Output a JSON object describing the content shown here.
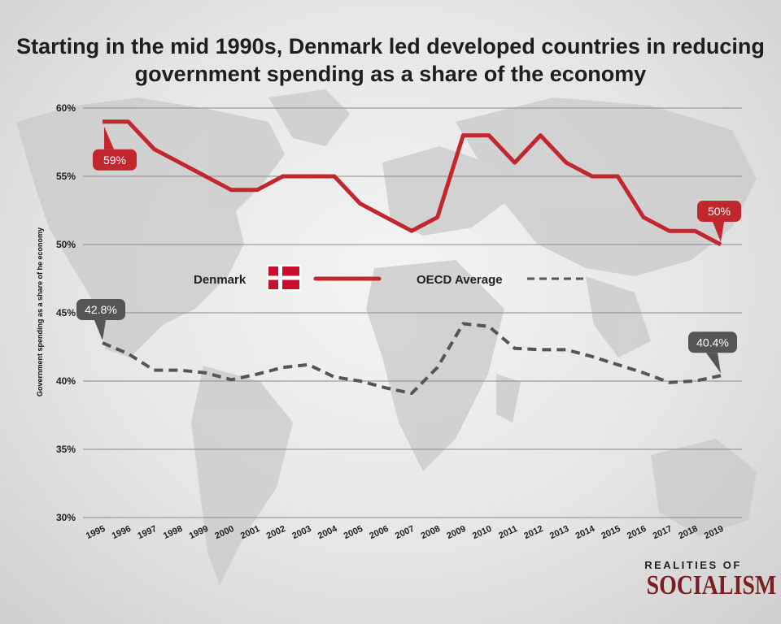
{
  "title": "Starting in the mid 1990s, Denmark led developed countries in reducing government spending as a share of the economy",
  "logo": {
    "top": "REALITIES OF",
    "main": "SOCIALISM"
  },
  "colors": {
    "denmark": "#c1272d",
    "oecd": "#555555",
    "grid": "#8a8a8a"
  },
  "chart_data": {
    "type": "line",
    "ylabel": "Government spending as a share of he economy",
    "xlabel": "",
    "ylim": [
      30,
      60
    ],
    "yticks": [
      30,
      35,
      40,
      45,
      50,
      55,
      60
    ],
    "ytick_labels": [
      "30%",
      "35%",
      "40%",
      "45%",
      "50%",
      "55%",
      "60%"
    ],
    "grid": true,
    "legend_placement": "center",
    "x": [
      "1995",
      "1996",
      "1997",
      "1998",
      "1999",
      "2000",
      "2001",
      "2002",
      "2003",
      "2004",
      "2005",
      "2006",
      "2007",
      "2008",
      "2009",
      "2010",
      "2011",
      "2012",
      "2013",
      "2014",
      "2015",
      "2016",
      "2017",
      "2018",
      "2019"
    ],
    "series": [
      {
        "name": "Denmark",
        "style": "solid",
        "values": [
          59,
          59,
          57,
          56,
          55,
          54,
          54,
          55,
          55,
          55,
          53,
          52,
          51,
          52,
          58,
          58,
          56,
          58,
          56,
          55,
          55,
          52,
          51,
          51,
          50
        ]
      },
      {
        "name": "OECD Average",
        "style": "dashed",
        "values": [
          42.8,
          42.0,
          40.8,
          40.8,
          40.6,
          40.1,
          40.5,
          41.0,
          41.2,
          40.3,
          40.0,
          39.5,
          39.1,
          41.0,
          44.2,
          44.0,
          42.4,
          42.3,
          42.3,
          41.8,
          41.2,
          40.6,
          39.9,
          40.0,
          40.4
        ]
      }
    ],
    "annotations": [
      {
        "series": 0,
        "x": "1995",
        "label": "59%"
      },
      {
        "series": 0,
        "x": "2019",
        "label": "50%"
      },
      {
        "series": 1,
        "x": "1995",
        "label": "42.8%"
      },
      {
        "series": 1,
        "x": "2019",
        "label": "40.4%"
      }
    ]
  }
}
